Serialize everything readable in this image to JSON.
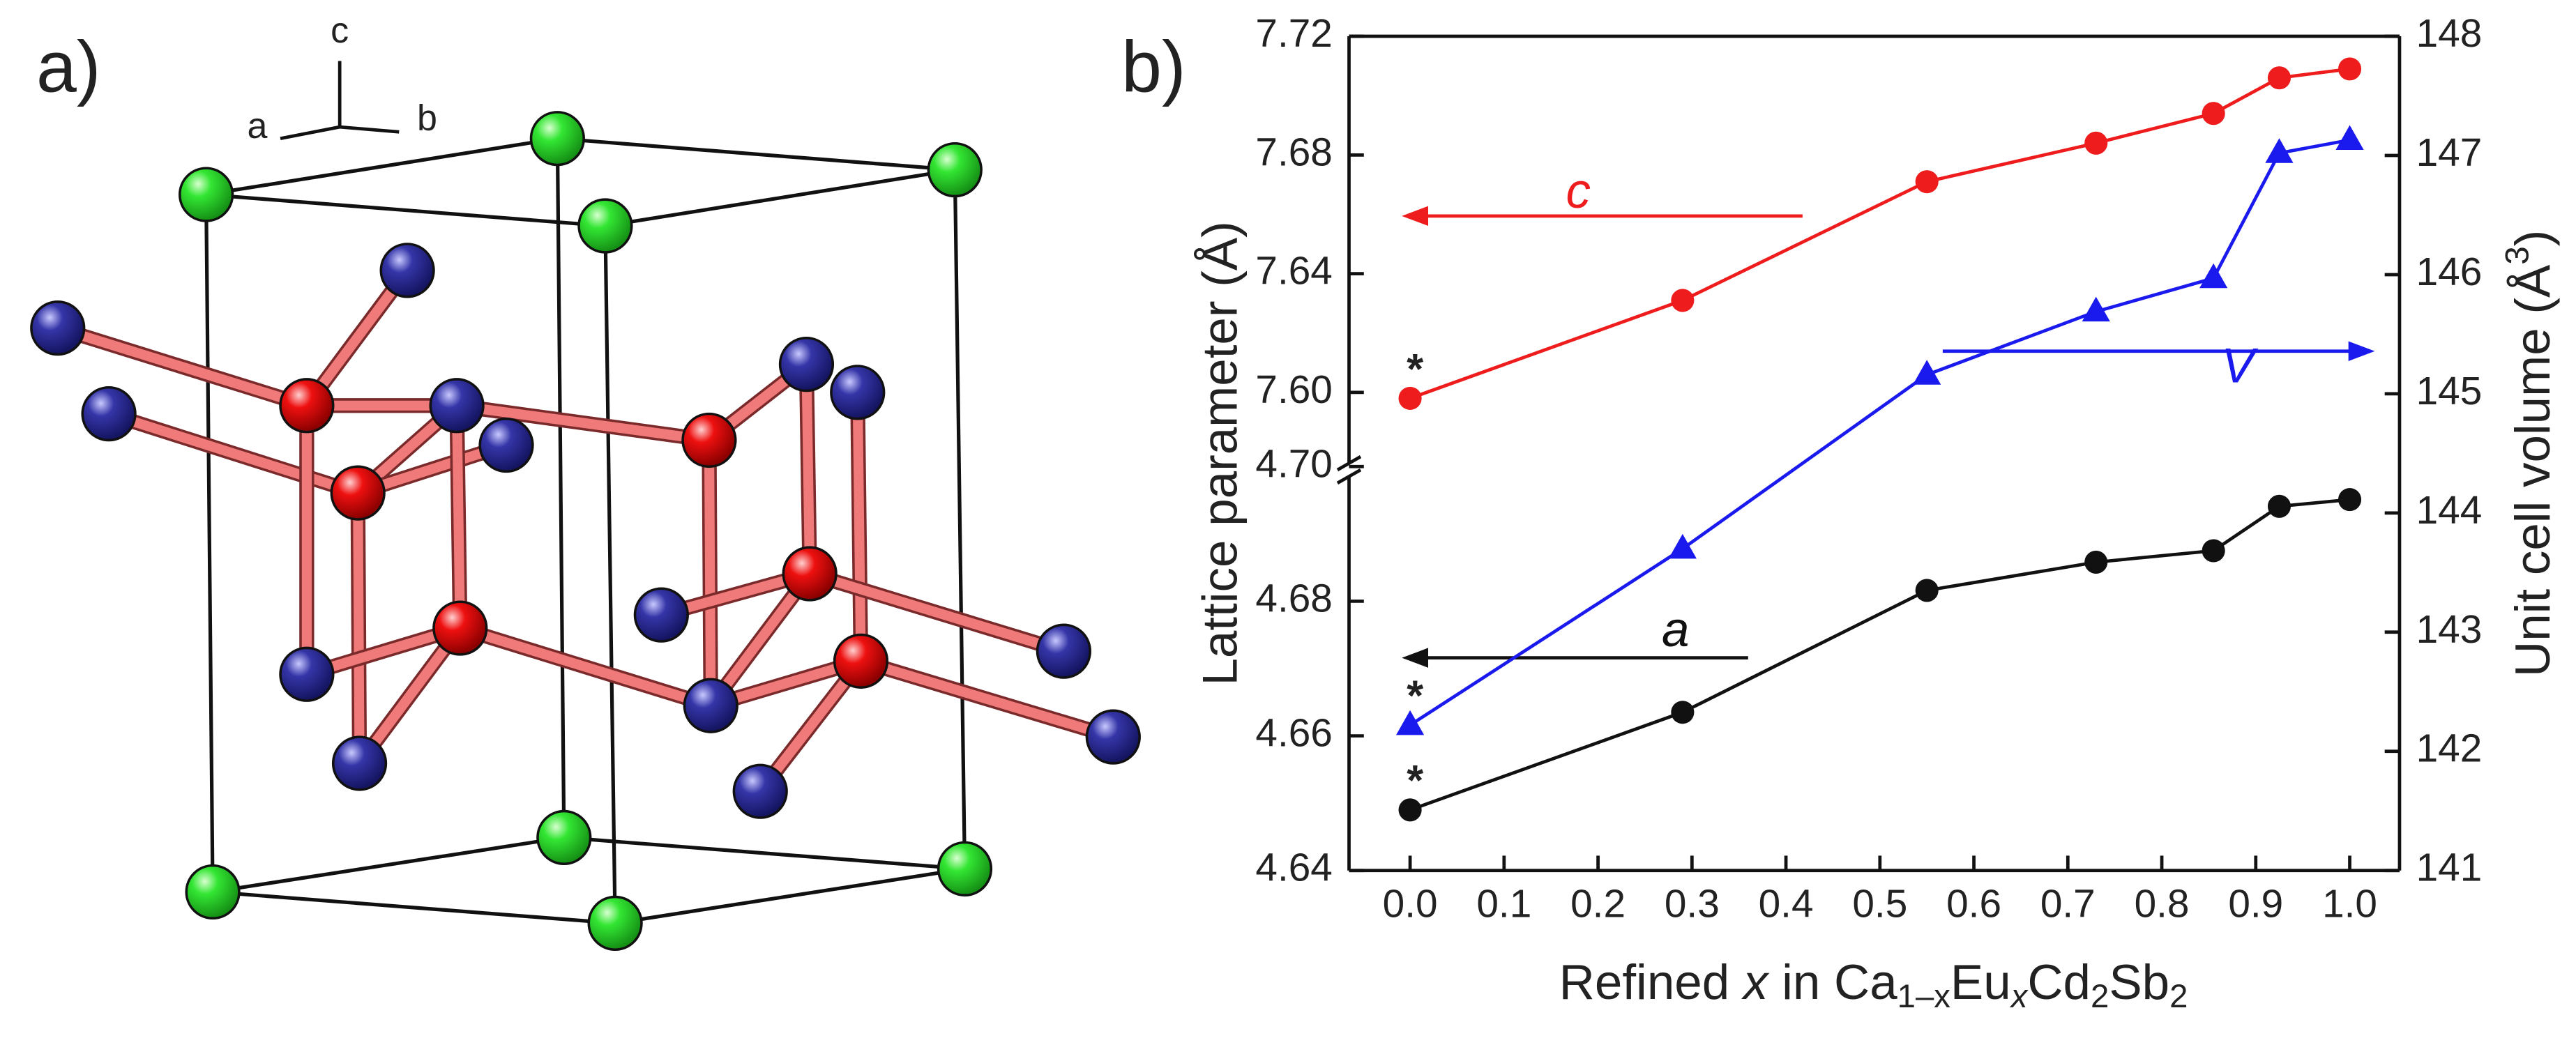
{
  "structure": {
    "panel_label": "a)",
    "axis_labels": {
      "a": "a",
      "b": "b",
      "c": "c"
    }
  },
  "chart_data": {
    "type": "line",
    "panel_label": "b)",
    "xlabel_parts": [
      "Refined ",
      "x",
      " in Ca",
      "1–x",
      "Eu",
      "x",
      "Cd",
      "2",
      "Sb",
      "2"
    ],
    "ylabel": "Lattice parameter (Å)",
    "y2label_parts": [
      "Unit cell volume (Å",
      "3",
      ")"
    ],
    "xlim": [
      -0.065,
      1.053
    ],
    "xticks": [
      {
        "value": 0,
        "label": "0.0"
      },
      0.1,
      0.2,
      0.3,
      0.4,
      0.5,
      0.6,
      0.7,
      0.8,
      0.9,
      {
        "value": 1,
        "label": "1.0"
      }
    ],
    "y_segments": [
      {
        "ylim": [
          4.64,
          4.7
        ],
        "yticks": [
          4.64,
          4.66,
          4.68,
          {
            "value": 4.7,
            "label": "4.70"
          }
        ]
      },
      {
        "ylim": [
          7.6,
          7.72
        ],
        "yticks": [
          {
            "value": 7.6,
            "label": "7.60"
          },
          7.64,
          7.68,
          7.72
        ]
      }
    ],
    "y_break": true,
    "y2lim": [
      141,
      148
    ],
    "y2ticks": [
      141,
      142,
      143,
      144,
      145,
      146,
      147,
      148
    ],
    "x": [
      0,
      0.29,
      0.55,
      0.73,
      0.855,
      0.925,
      1.0
    ],
    "series": [
      {
        "name": "c",
        "color": "#ee1c1c",
        "marker": "circle",
        "segment": 1,
        "arrow_label": "c",
        "first_point_label": "*",
        "values": [
          7.598,
          7.631,
          7.671,
          7.684,
          7.694,
          7.706,
          7.709
        ]
      },
      {
        "name": "a",
        "color": "#111111",
        "marker": "circle",
        "segment": 0,
        "arrow_label": "a",
        "first_point_label": "*",
        "values": [
          4.649,
          4.6635,
          4.6816,
          4.6858,
          4.6875,
          4.6941,
          4.6951
        ]
      },
      {
        "name": "V",
        "color": "#1a1aee",
        "marker": "triangle",
        "axis": "y2",
        "arrow_label": "V",
        "first_point_label": "*",
        "values": [
          142.22,
          143.7,
          145.16,
          145.69,
          145.97,
          147.02,
          147.13
        ]
      }
    ]
  }
}
